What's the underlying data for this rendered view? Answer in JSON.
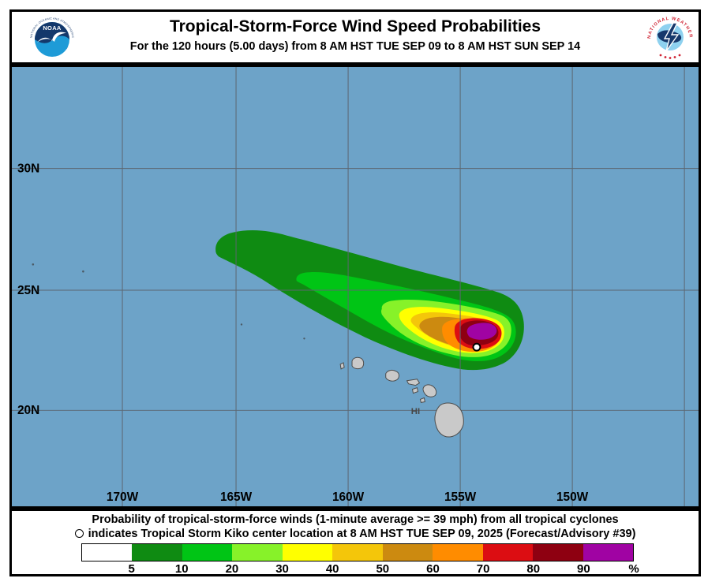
{
  "header": {
    "title": "Tropical-Storm-Force Wind Speed Probabilities",
    "subtitle": "For the 120 hours (5.00 days) from 8 AM HST TUE SEP 09 to 8 AM HST SUN SEP 14",
    "noaa_logo": {
      "acronym": "NOAA",
      "ring_top": "NATIONAL OCEANIC AND ATMOSPHERIC ADMINISTRATION",
      "ring_bottom": "U.S. DEPARTMENT OF COMMERCE"
    },
    "nws_logo": {
      "ring": "NATIONAL WEATHER SERVICE"
    }
  },
  "map": {
    "lat_labels": [
      "30N",
      "25N",
      "20N"
    ],
    "lon_labels": [
      "170W",
      "165W",
      "160W",
      "155W",
      "150W"
    ],
    "region_label": "HI",
    "colors": {
      "ocean": "#6da3c8",
      "grid": "#5c6670",
      "island": "#c9c9c9",
      "island_outline": "#4c4c4c",
      "marker_fill": "#ffffff",
      "marker_outline": "#000000"
    }
  },
  "footer": {
    "line1": "Probability of tropical-storm-force winds (1-minute average >= 39 mph) from all tropical cyclones",
    "line2": "indicates Tropical Storm Kiko center location at 8 AM HST TUE SEP 09, 2025 (Forecast/Advisory #39)",
    "legend": {
      "values": [
        "5",
        "10",
        "20",
        "30",
        "40",
        "50",
        "60",
        "70",
        "80",
        "90",
        "%"
      ],
      "colors": [
        "#ffffff",
        "#0f8b12",
        "#00c515",
        "#87f229",
        "#ffff00",
        "#f4c60a",
        "#cc8a10",
        "#ff8c00",
        "#dc0d12",
        "#8e0011",
        "#a003a3"
      ]
    }
  }
}
